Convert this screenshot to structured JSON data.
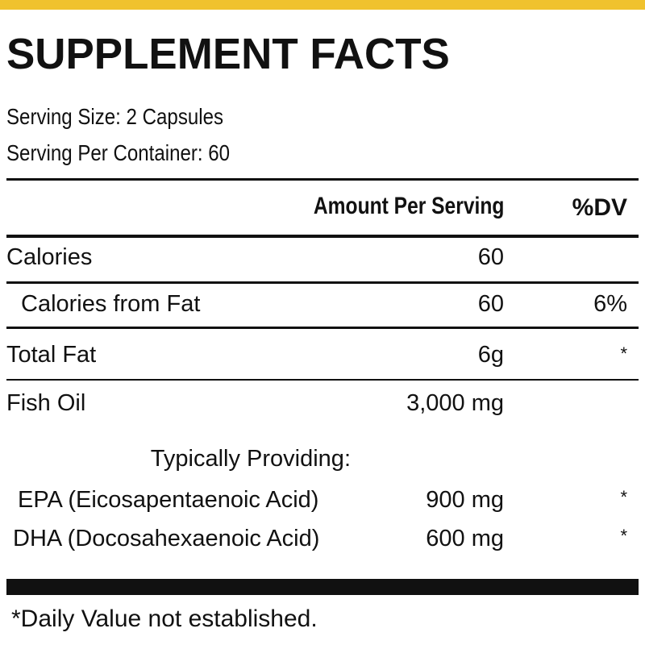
{
  "header": {
    "title": "SUPPLEMENT FACTS",
    "serving_size": "Serving Size: 2 Capsules",
    "servings_per_container": "Serving Per Container: 60"
  },
  "table": {
    "columns": [
      "Amount Per Serving",
      "%DV"
    ],
    "rows": [
      {
        "label": "Calories",
        "amount": "60"
      },
      {
        "label": "Calories from Fat",
        "amount": "60",
        "dv": "6%"
      },
      {
        "label": "Total Fat",
        "amount": "6g",
        "dv": "*"
      },
      {
        "label": "Fish Oil",
        "amount": "3,000 mg"
      },
      {
        "label": "Typically Providing:"
      },
      {
        "label": "EPA (Eicosapentaenoic Acid)",
        "amount": "900 mg",
        "dv": "*"
      },
      {
        "label": "DHA (Docosahexaenoic Acid)",
        "amount": "600 mg",
        "dv": "*"
      }
    ]
  },
  "footnote": "*Daily Value not established."
}
